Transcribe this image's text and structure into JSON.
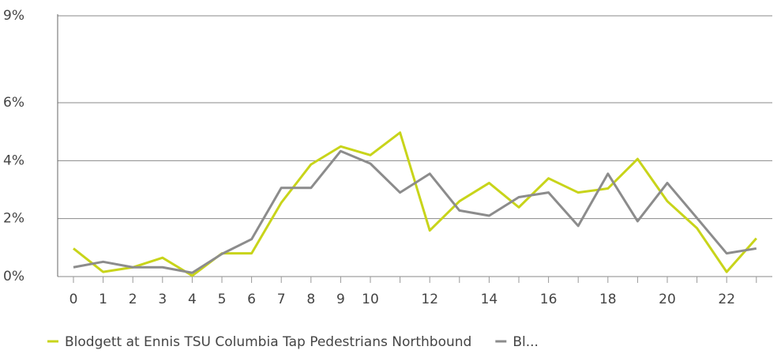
{
  "chart_data": {
    "type": "line",
    "categories": [
      "0",
      "1",
      "2",
      "3",
      "4",
      "5",
      "6",
      "7",
      "8",
      "9",
      "10",
      null,
      "12",
      null,
      "14",
      null,
      "16",
      null,
      "18",
      null,
      "20",
      null,
      "22",
      null
    ],
    "series": [
      {
        "name": "Blodgett at Ennis TSU Columbia Tap Pedestrians Northbound",
        "color": "#c8d41a",
        "values": [
          0.97,
          0.16,
          0.32,
          0.65,
          0.03,
          0.8,
          0.8,
          2.55,
          3.87,
          4.49,
          4.19,
          4.97,
          1.59,
          2.6,
          3.23,
          2.39,
          3.39,
          2.9,
          3.04,
          4.06,
          2.6,
          1.67,
          0.16,
          1.32
        ]
      },
      {
        "name": "Bl...",
        "color": "#8c8c8c",
        "values": [
          0.32,
          0.51,
          0.32,
          0.32,
          0.13,
          0.78,
          1.29,
          3.06,
          3.06,
          4.33,
          3.9,
          2.9,
          3.55,
          2.28,
          2.1,
          2.74,
          2.9,
          1.75,
          3.55,
          1.91,
          3.23,
          2.02,
          0.8,
          0.97
        ]
      }
    ],
    "ylim": [
      0,
      9
    ],
    "yticks": [
      {
        "value": 0,
        "label": "0%"
      },
      {
        "value": 2,
        "label": "2%"
      },
      {
        "value": 4,
        "label": "4%"
      },
      {
        "value": 6,
        "label": "6%"
      },
      {
        "value": 9,
        "label": "9%"
      }
    ],
    "grid": true,
    "legend": "bottom"
  }
}
